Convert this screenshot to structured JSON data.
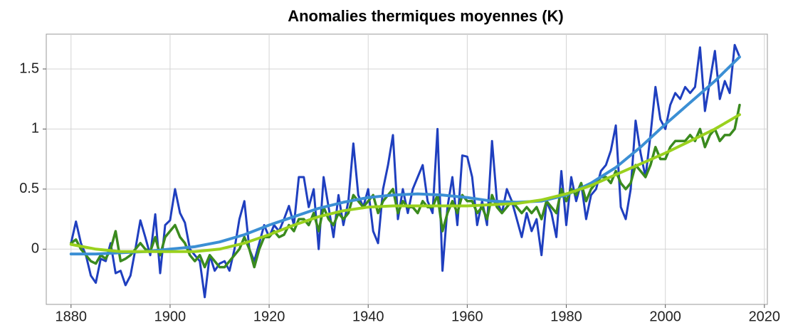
{
  "chart_data": {
    "type": "line",
    "title": "Anomalies thermiques moyennes (K)",
    "x": [
      1880,
      1881,
      1882,
      1883,
      1884,
      1885,
      1886,
      1887,
      1888,
      1889,
      1890,
      1891,
      1892,
      1893,
      1894,
      1895,
      1896,
      1897,
      1898,
      1899,
      1900,
      1901,
      1902,
      1903,
      1904,
      1905,
      1906,
      1907,
      1908,
      1909,
      1910,
      1911,
      1912,
      1913,
      1914,
      1915,
      1916,
      1917,
      1918,
      1919,
      1920,
      1921,
      1922,
      1923,
      1924,
      1925,
      1926,
      1927,
      1928,
      1929,
      1930,
      1931,
      1932,
      1933,
      1934,
      1935,
      1936,
      1937,
      1938,
      1939,
      1940,
      1941,
      1942,
      1943,
      1944,
      1945,
      1946,
      1947,
      1948,
      1949,
      1950,
      1951,
      1952,
      1953,
      1954,
      1955,
      1956,
      1957,
      1958,
      1959,
      1960,
      1961,
      1962,
      1963,
      1964,
      1965,
      1966,
      1967,
      1968,
      1969,
      1970,
      1971,
      1972,
      1973,
      1974,
      1975,
      1976,
      1977,
      1978,
      1979,
      1980,
      1981,
      1982,
      1983,
      1984,
      1985,
      1986,
      1987,
      1988,
      1989,
      1990,
      1991,
      1992,
      1993,
      1994,
      1995,
      1996,
      1997,
      1998,
      1999,
      2000,
      2001,
      2002,
      2003,
      2004,
      2005,
      2006,
      2007,
      2008,
      2009,
      2010,
      2011,
      2012,
      2013,
      2014,
      2015
    ],
    "series": [
      {
        "color": "#1f3fbf",
        "width": 3,
        "values": [
          0.05,
          0.23,
          0.05,
          -0.05,
          -0.22,
          -0.28,
          -0.08,
          -0.1,
          0.05,
          -0.2,
          -0.18,
          -0.3,
          -0.22,
          0.0,
          0.24,
          0.1,
          -0.05,
          0.29,
          -0.2,
          0.2,
          0.24,
          0.5,
          0.3,
          0.22,
          0.0,
          -0.05,
          -0.1,
          -0.4,
          -0.05,
          -0.18,
          -0.12,
          -0.1,
          -0.18,
          0.0,
          0.25,
          0.4,
          0.0,
          -0.1,
          0.05,
          0.2,
          0.1,
          0.2,
          0.15,
          0.25,
          0.36,
          0.2,
          0.6,
          0.6,
          0.35,
          0.5,
          0.0,
          0.6,
          0.35,
          0.1,
          0.45,
          0.2,
          0.4,
          0.88,
          0.45,
          0.35,
          0.5,
          0.15,
          0.05,
          0.5,
          0.7,
          0.95,
          0.25,
          0.5,
          0.3,
          0.5,
          0.6,
          0.7,
          0.4,
          0.3,
          1.0,
          -0.18,
          0.35,
          0.6,
          0.2,
          0.78,
          0.77,
          0.6,
          0.2,
          0.4,
          0.2,
          0.9,
          0.4,
          0.3,
          0.5,
          0.4,
          0.25,
          0.1,
          0.3,
          0.15,
          0.25,
          -0.05,
          0.4,
          0.3,
          0.1,
          0.65,
          0.2,
          0.6,
          0.4,
          0.55,
          0.25,
          0.45,
          0.5,
          0.65,
          0.7,
          0.82,
          1.03,
          0.35,
          0.25,
          0.5,
          1.07,
          0.8,
          0.6,
          0.95,
          1.35,
          1.08,
          1.0,
          1.2,
          1.3,
          1.25,
          1.35,
          1.3,
          1.35,
          1.68,
          1.15,
          1.4,
          1.65,
          1.25,
          1.4,
          1.3,
          1.7,
          1.6
        ]
      },
      {
        "color": "#3a8a1e",
        "width": 3.5,
        "values": [
          0.05,
          0.08,
          0.0,
          -0.05,
          -0.1,
          -0.12,
          -0.05,
          -0.08,
          0.0,
          0.15,
          -0.1,
          -0.08,
          -0.05,
          0.0,
          0.05,
          0.0,
          -0.02,
          0.1,
          -0.05,
          0.1,
          0.15,
          0.2,
          0.1,
          0.05,
          -0.05,
          -0.1,
          -0.05,
          -0.15,
          -0.05,
          -0.1,
          -0.15,
          -0.15,
          -0.1,
          -0.05,
          0.0,
          0.1,
          0.0,
          -0.15,
          0.0,
          0.1,
          0.1,
          0.15,
          0.1,
          0.12,
          0.2,
          0.15,
          0.25,
          0.25,
          0.2,
          0.3,
          0.15,
          0.35,
          0.25,
          0.2,
          0.3,
          0.25,
          0.3,
          0.45,
          0.4,
          0.35,
          0.4,
          0.45,
          0.3,
          0.4,
          0.45,
          0.5,
          0.3,
          0.4,
          0.35,
          0.35,
          0.3,
          0.4,
          0.35,
          0.35,
          0.45,
          0.15,
          0.3,
          0.4,
          0.3,
          0.45,
          0.4,
          0.4,
          0.3,
          0.35,
          0.25,
          0.45,
          0.35,
          0.3,
          0.35,
          0.4,
          0.35,
          0.3,
          0.35,
          0.3,
          0.35,
          0.25,
          0.4,
          0.35,
          0.3,
          0.5,
          0.4,
          0.5,
          0.45,
          0.55,
          0.4,
          0.5,
          0.55,
          0.6,
          0.6,
          0.55,
          0.65,
          0.55,
          0.5,
          0.55,
          0.7,
          0.65,
          0.6,
          0.7,
          0.85,
          0.75,
          0.75,
          0.85,
          0.9,
          0.9,
          0.9,
          0.95,
          0.9,
          1.0,
          0.85,
          0.95,
          1.0,
          0.9,
          0.95,
          0.95,
          1.0,
          1.2
        ]
      },
      {
        "color": "#3b8fd4",
        "width": 4,
        "x": [
          1880,
          1885,
          1890,
          1895,
          1900,
          1905,
          1910,
          1915,
          1920,
          1925,
          1930,
          1935,
          1940,
          1945,
          1950,
          1955,
          1960,
          1965,
          1970,
          1975,
          1980,
          1985,
          1990,
          1995,
          2000,
          2005,
          2010,
          2015
        ],
        "values": [
          -0.04,
          -0.04,
          -0.03,
          -0.02,
          0.0,
          0.02,
          0.06,
          0.12,
          0.2,
          0.27,
          0.34,
          0.39,
          0.43,
          0.45,
          0.46,
          0.45,
          0.43,
          0.4,
          0.39,
          0.4,
          0.45,
          0.55,
          0.68,
          0.85,
          1.04,
          1.22,
          1.4,
          1.6
        ]
      },
      {
        "color": "#9ad11e",
        "width": 4,
        "x": [
          1880,
          1885,
          1890,
          1895,
          1900,
          1905,
          1910,
          1915,
          1920,
          1925,
          1930,
          1935,
          1940,
          1945,
          1950,
          1955,
          1960,
          1965,
          1970,
          1975,
          1980,
          1985,
          1990,
          1995,
          2000,
          2005,
          2010,
          2015
        ],
        "values": [
          0.04,
          0.0,
          -0.02,
          -0.02,
          -0.02,
          -0.02,
          0.0,
          0.05,
          0.12,
          0.2,
          0.27,
          0.32,
          0.35,
          0.36,
          0.36,
          0.36,
          0.36,
          0.37,
          0.38,
          0.41,
          0.46,
          0.53,
          0.62,
          0.71,
          0.8,
          0.9,
          1.0,
          1.12
        ]
      }
    ],
    "xlim": [
      1875,
      2020.6
    ],
    "ylim": [
      -0.46,
      1.79
    ],
    "xticks": [
      1880,
      1900,
      1920,
      1940,
      1960,
      1980,
      2000,
      2020
    ],
    "yticks": [
      0.0,
      0.5,
      1.0,
      1.5
    ],
    "grid": true
  }
}
